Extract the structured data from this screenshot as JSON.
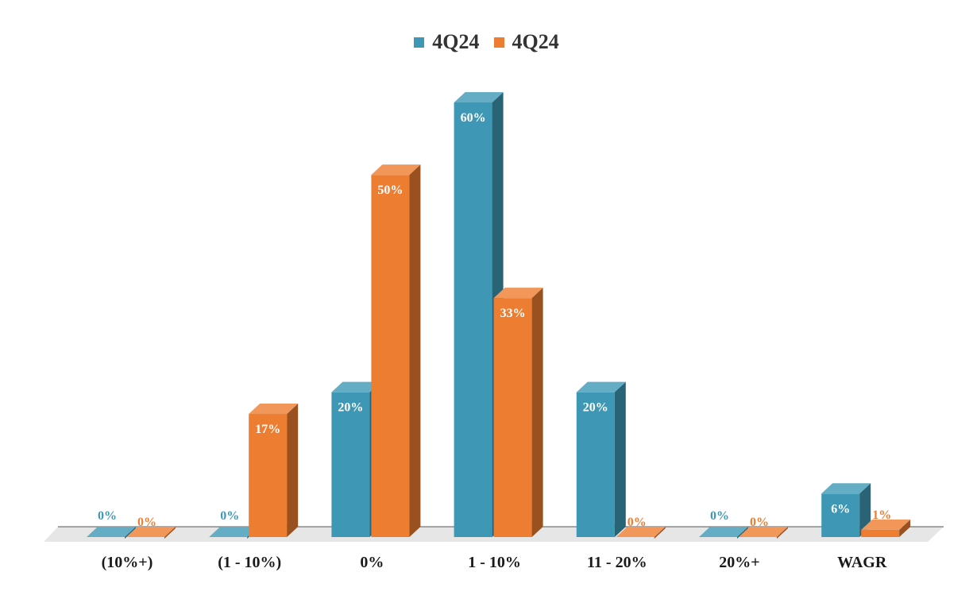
{
  "chart_data": {
    "type": "bar",
    "categories": [
      "(10%+)",
      "(1 - 10%)",
      "0%",
      "1 - 10%",
      "11 - 20%",
      "20%+",
      "WAGR"
    ],
    "series": [
      {
        "name": "4Q24",
        "color": "#3e98b5",
        "values": [
          0,
          0,
          20,
          60,
          20,
          0,
          6
        ],
        "labels": [
          "0%",
          "0%",
          "20%",
          "60%",
          "20%",
          "0%",
          "6%"
        ]
      },
      {
        "name": "4Q24",
        "color": "#ed7d31",
        "values": [
          0,
          17,
          50,
          33,
          0,
          0,
          1
        ],
        "labels": [
          "0%",
          "17%",
          "50%",
          "33%",
          "0%",
          "0%",
          "1%"
        ]
      }
    ],
    "legend": "top-center",
    "grid": false,
    "ylim": [
      0,
      60
    ],
    "three_d": true
  }
}
